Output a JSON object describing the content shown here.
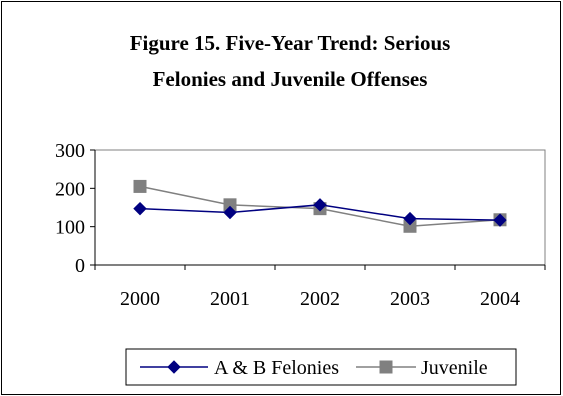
{
  "chart_data": {
    "type": "line",
    "title_lines": [
      "Figure 15.  Five-Year Trend:  Serious",
      "Felonies and Juvenile Offenses"
    ],
    "title": "Figure 15.  Five-Year Trend:  Serious Felonies and Juvenile Offenses",
    "xlabel": "",
    "ylabel": "",
    "categories": [
      "2000",
      "2001",
      "2002",
      "2003",
      "2004"
    ],
    "y_ticks": [
      "300",
      "200",
      "100",
      "0"
    ],
    "ylim": [
      0,
      300
    ],
    "grid": false,
    "legend_position": "bottom",
    "series": [
      {
        "name": "A & B Felonies",
        "values": [
          147,
          137,
          157,
          121,
          117
        ],
        "color": "#000080",
        "marker": "diamond"
      },
      {
        "name": "Juvenile",
        "values": [
          205,
          157,
          147,
          101,
          118
        ],
        "color": "#808080",
        "marker": "square"
      }
    ]
  }
}
